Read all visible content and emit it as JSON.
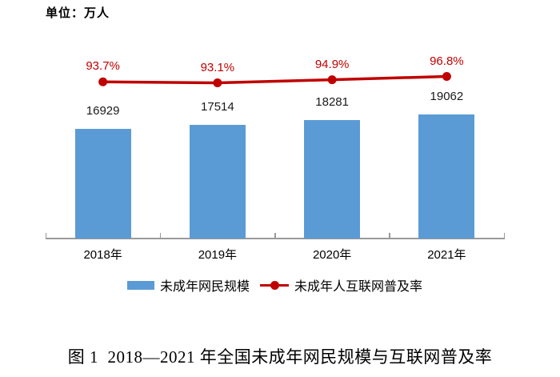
{
  "chart_data": {
    "type": "combo-bar-line",
    "categories": [
      "2018年",
      "2019年",
      "2020年",
      "2021年"
    ],
    "series": [
      {
        "name": "未成年网民规模",
        "type": "bar",
        "unit": "万人",
        "values": [
          16929,
          17514,
          18281,
          19062
        ],
        "value_labels": [
          "16929",
          "17514",
          "18281",
          "19062"
        ],
        "color": "#5B9BD5"
      },
      {
        "name": "未成年人互联网普及率",
        "type": "line",
        "unit": "%",
        "values": [
          93.7,
          93.1,
          94.9,
          96.8
        ],
        "value_labels": [
          "93.7%",
          "93.1%",
          "94.9%",
          "96.8%"
        ],
        "color": "#C00000"
      }
    ],
    "unit_label": "单位：万人",
    "caption": "图 1  2018—2021 年全国未成年网民规模与互联网普及率",
    "legend_position": "bottom",
    "grid": false,
    "value_labels_shown": true,
    "axis_color": "#9A9A9A",
    "ylim_bars": [
      0,
      0
    ],
    "baseline_value": 0
  }
}
